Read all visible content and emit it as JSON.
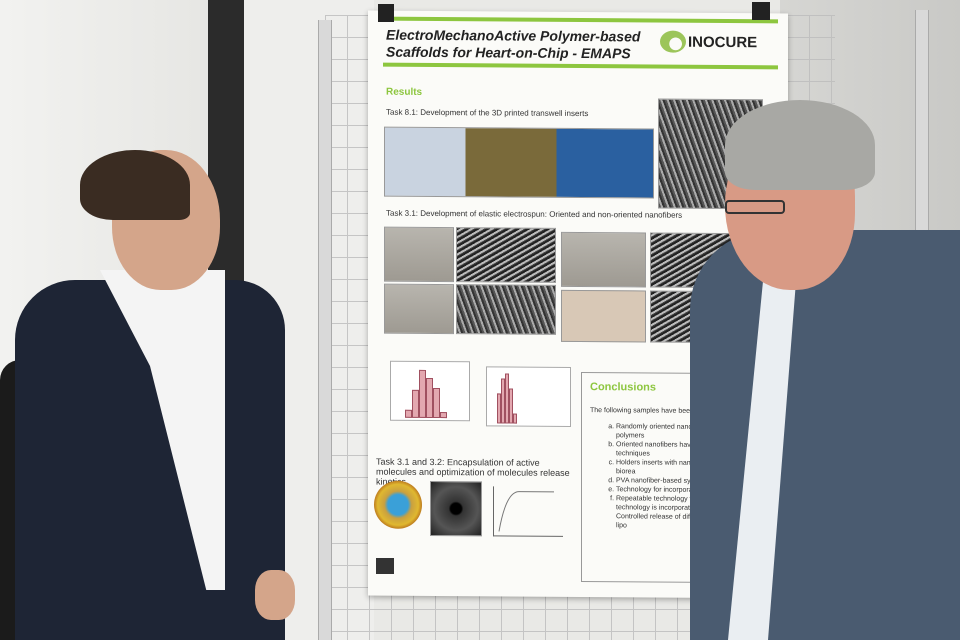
{
  "poster": {
    "title_line1": "ElectroMechanoActive Polymer-based",
    "title_line2": "Scaffolds for Heart-on-Chip - EMAPS",
    "logo_text": "INOCURE",
    "results_heading": "Results",
    "task_8_1": "Task 8.1: Development of the 3D printed transwell inserts",
    "task_3_1": "Task 3.1: Development of elastic electrospun: Oriented and non-oriented nanofibers",
    "task_3_1_3_2": "Task 3.1 and 3.2: Encapsulation of active molecules and optimization of molecules release kinetics",
    "conclusions": {
      "heading": "Conclusions",
      "intro": "The following samples have been prepa",
      "items": [
        "Randomly oriented nanofibe broad set of polymers",
        "Oriented nanofibers have b by different techniques",
        "Holders inserts with nanof for cell seeding and biorea",
        "PVA nanofiber-based syste controlled release",
        "Technology for incorporat and niosomes",
        "Repeatable technology for release. This technology is incorporated liposomes int Controlled release of diffe encapsulated drugs into lipo"
      ]
    },
    "accent_color": "#8dc63f"
  }
}
